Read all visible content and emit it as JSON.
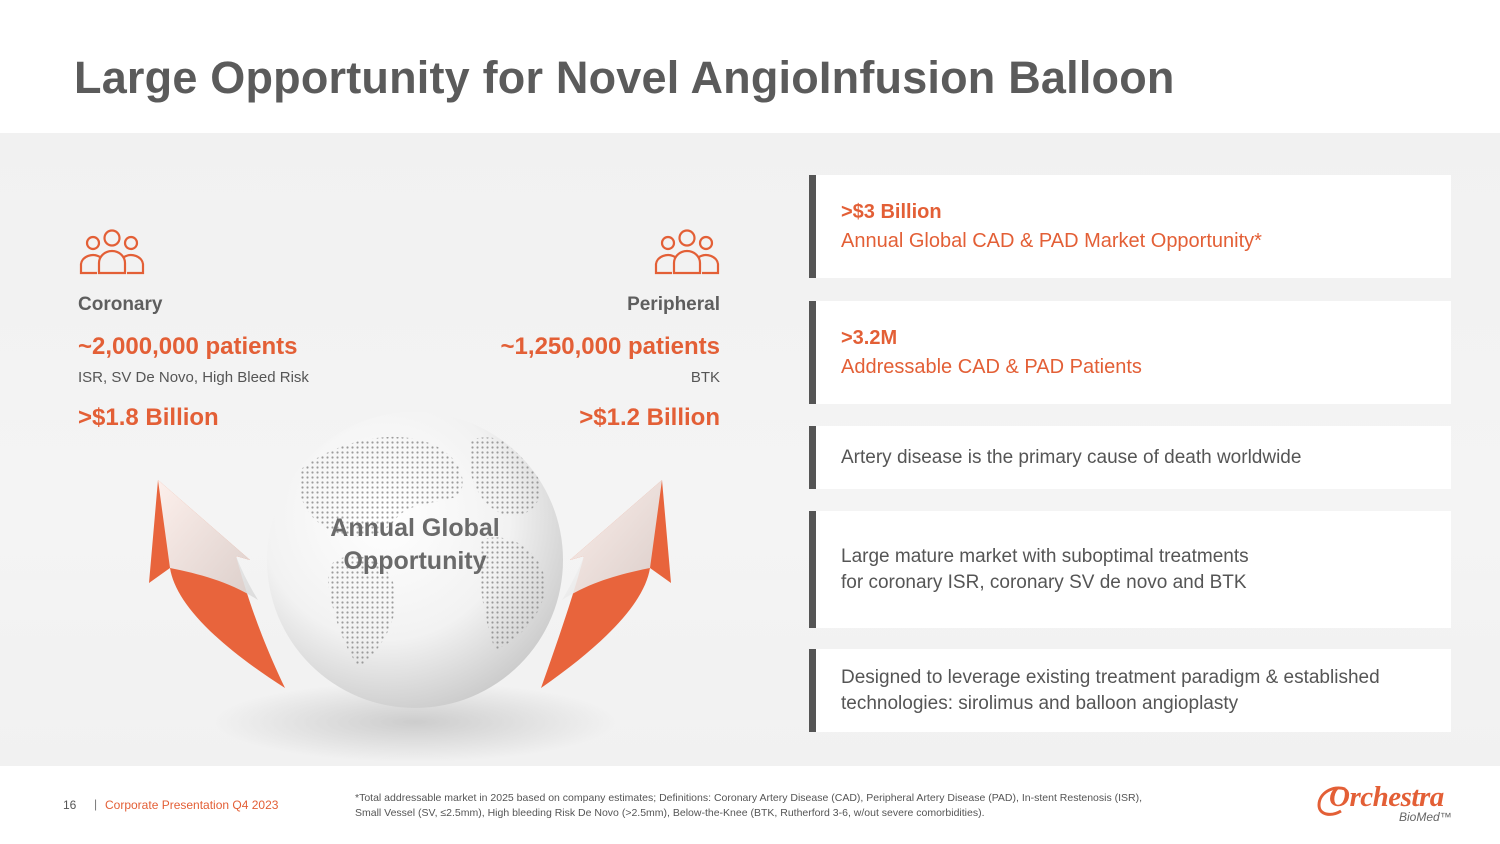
{
  "title": "Large Opportunity for Novel AngioInfusion Balloon",
  "markets": {
    "coronary": {
      "icon": "people-group-icon",
      "label": "Coronary",
      "patients": "~2,000,000 patients",
      "indication": "ISR, SV De Novo, High Bleed Risk",
      "value": ">$1.8 Billion"
    },
    "peripheral": {
      "icon": "people-group-icon",
      "label": "Peripheral",
      "patients": "~1,250,000 patients",
      "indication": "BTK",
      "value": ">$1.2 Billion"
    }
  },
  "globe": {
    "line1": "Annual Global",
    "line2": "Opportunity"
  },
  "cards": [
    {
      "headline": ">$3 Billion",
      "subline": "Annual Global CAD & PAD Market Opportunity*"
    },
    {
      "headline": ">3.2M",
      "subline": "Addressable CAD & PAD Patients"
    },
    {
      "text": "Artery disease is the primary cause of death worldwide"
    },
    {
      "line1": "Large mature market with suboptimal treatments",
      "line2": "for coronary ISR, coronary SV de novo and BTK"
    },
    {
      "line1": "Designed to leverage existing treatment paradigm & established",
      "line2": "technologies: sirolimus and balloon angioplasty"
    }
  ],
  "footer": {
    "page_number": "16",
    "separator": "|",
    "deck_name": "Corporate Presentation Q4 2023",
    "footnote_line1": "*Total addressable market in 2025 based on company estimates; Definitions: Coronary Artery Disease (CAD), Peripheral Artery Disease (PAD), In-stent Restenosis (ISR),",
    "footnote_line2": "Small Vessel (SV, ≤2.5mm), High bleeding Risk De Novo (>2.5mm), Below-the-Knee (BTK, Rutherford 3-6, w/out severe comorbidities)."
  },
  "logo": {
    "name": "Orchestra",
    "sub": "BioMed™"
  },
  "colors": {
    "accent": "#e35f36",
    "title_gray": "#5b5b5b",
    "card_border": "#555555",
    "band_bg": "#f2f2f2"
  }
}
